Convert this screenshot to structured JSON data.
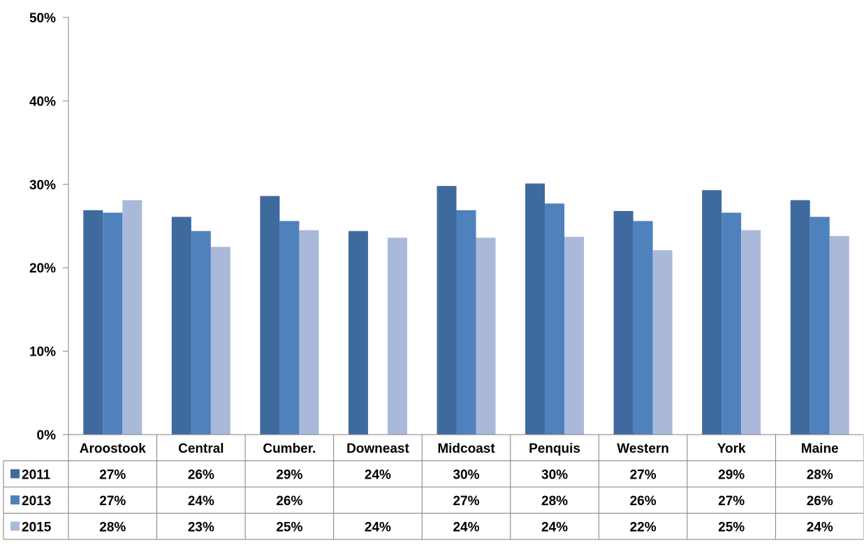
{
  "chart_data": {
    "type": "bar",
    "categories": [
      "Aroostook",
      "Central",
      "Cumber.",
      "Downeast",
      "Midcoast",
      "Penquis",
      "Western",
      "York",
      "Maine"
    ],
    "series": [
      {
        "name": "2011",
        "values": [
          26.9,
          26.1,
          28.6,
          24.4,
          29.8,
          30.1,
          26.8,
          29.3,
          28.1
        ],
        "labels": [
          "27%",
          "26%",
          "29%",
          "24%",
          "30%",
          "30%",
          "27%",
          "29%",
          "28%"
        ],
        "color": "#3f6a9e"
      },
      {
        "name": "2013",
        "values": [
          26.6,
          24.4,
          25.6,
          null,
          26.9,
          27.7,
          25.6,
          26.6,
          26.1
        ],
        "labels": [
          "27%",
          "24%",
          "26%",
          "",
          "27%",
          "28%",
          "26%",
          "27%",
          "26%"
        ],
        "color": "#4f81bd"
      },
      {
        "name": "2015",
        "values": [
          28.1,
          22.5,
          24.5,
          23.6,
          23.6,
          23.7,
          22.1,
          24.5,
          23.8
        ],
        "labels": [
          "28%",
          "23%",
          "25%",
          "24%",
          "24%",
          "24%",
          "22%",
          "25%",
          "24%"
        ],
        "color": "#aab9d9"
      }
    ],
    "ylim": [
      0,
      50
    ],
    "yticks": [
      "0%",
      "10%",
      "20%",
      "30%",
      "40%",
      "50%"
    ],
    "grid": false,
    "legend": "data-table"
  }
}
